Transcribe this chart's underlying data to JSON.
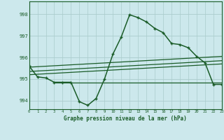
{
  "title": "Graphe pression niveau de la mer (hPa)",
  "background_color": "#cce8ec",
  "grid_color": "#aacccc",
  "line_color": "#1a5c28",
  "x_min": 0,
  "x_max": 23,
  "y_min": 993.6,
  "y_max": 998.6,
  "yticks": [
    994,
    995,
    996,
    997,
    998
  ],
  "xticks": [
    0,
    1,
    2,
    3,
    4,
    5,
    6,
    7,
    8,
    9,
    10,
    11,
    12,
    13,
    14,
    15,
    16,
    17,
    18,
    19,
    20,
    21,
    22,
    23
  ],
  "main_line_x": [
    0,
    1,
    2,
    3,
    4,
    5,
    6,
    7,
    8,
    9,
    10,
    11,
    12,
    13,
    14,
    15,
    16,
    17,
    18,
    19,
    20,
    21,
    22,
    23
  ],
  "main_line_y": [
    995.6,
    995.1,
    995.05,
    994.85,
    994.85,
    994.85,
    993.95,
    993.78,
    994.1,
    995.0,
    996.15,
    996.95,
    997.98,
    997.85,
    997.65,
    997.35,
    997.15,
    996.65,
    996.6,
    996.45,
    996.05,
    995.75,
    994.75,
    994.75
  ],
  "trend_line1_x": [
    0,
    23
  ],
  "trend_line1_y": [
    995.55,
    996.05
  ],
  "trend_line2_x": [
    0,
    23
  ],
  "trend_line2_y": [
    995.35,
    995.85
  ],
  "trend_line3_x": [
    0,
    23
  ],
  "trend_line3_y": [
    995.2,
    995.7
  ],
  "flat_line_x": [
    3,
    23
  ],
  "flat_line_y": [
    994.82,
    994.82
  ]
}
